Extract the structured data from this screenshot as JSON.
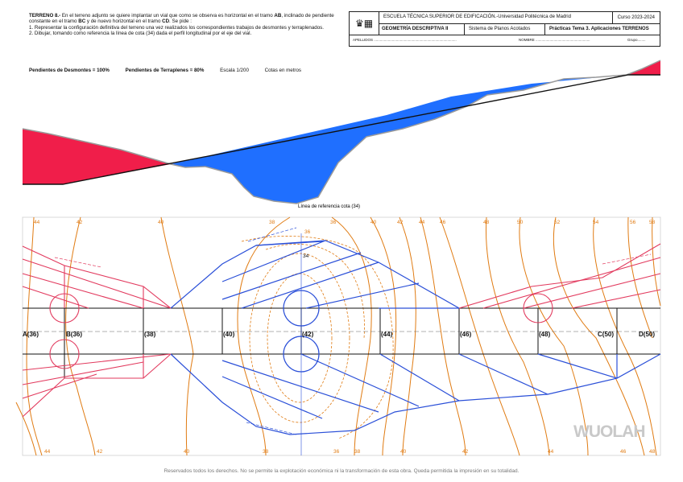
{
  "intro": {
    "title": "TERRENO 8.-",
    "text1": " En el terreno adjunto se quiere implantar un vial que como se observa es horizontal en el tramo ",
    "ab": "AB",
    "text2": ", inclinado de pendiente constante en el tramo ",
    "bc": "BC",
    "text3": " y de nuevo horizontal en el tramo ",
    "cd": "CD",
    "text4": ". Se pide :",
    "item1": "1.    Representar la configuración definitiva del terreno una vez realizados los correspondientes trabajos de desmontes y terraplenados.",
    "item2": "2.    Dibujar, tomando como referencia la línea de cota (34) dada el perfil longitudinal por el eje del vial."
  },
  "params": {
    "desmontes": "Pendientes de Desmontes = 100%",
    "terraplenes": "Pendientes de Terraplenes = 80%",
    "escala": "Escala 1/200",
    "cotas": "Cotas en metros"
  },
  "header": {
    "school": "ESCUELA TÉCNICA SUPERIOR DE EDIFICACIÓN.-Universidad Politécnica de Madrid",
    "course": "Curso 2023-2024",
    "subject": "GEOMETRÍA DESCRIPTIVA II",
    "system": "Sistema de Planos Acotados",
    "practice": "Prácticas Tema 3. Aplicaciones TERRENOS",
    "apellidos": "APELLIDOS ..................................................................................",
    "nombre": "NOMBRE ......................................................",
    "grupo": "Grupo........"
  },
  "profile_label": "Línea de referencia cota (34)",
  "station_labels": [
    "A(36)",
    "B(36)",
    "(38)",
    "(40)",
    "(42)",
    "(44)",
    "(46)",
    "(48)",
    "C(50)",
    "D(50)"
  ],
  "contour_labels_top": [
    "44",
    "42",
    "40",
    "38",
    "36",
    "40",
    "42",
    "44",
    "46",
    "48",
    "50",
    "52",
    "54",
    "56",
    "58"
  ],
  "contour_labels_bottom": [
    "44",
    "42",
    "40",
    "38",
    "36",
    "38",
    "40",
    "42",
    "44",
    "46",
    "48"
  ],
  "inner_labels": [
    "36",
    "34"
  ],
  "watermark": "WUOLAH",
  "footer": "Reservados todos los derechos. No se permite la explotación económica ni la transformación de esta obra. Queda permitida la impresión en su totalidad.",
  "colors": {
    "cut": "#1f6fff",
    "fill": "#f01e4a",
    "contour": "#e07b12",
    "road": "#111111",
    "plan_fill": "#e23a5e",
    "plan_cut": "#2a4fd8"
  }
}
